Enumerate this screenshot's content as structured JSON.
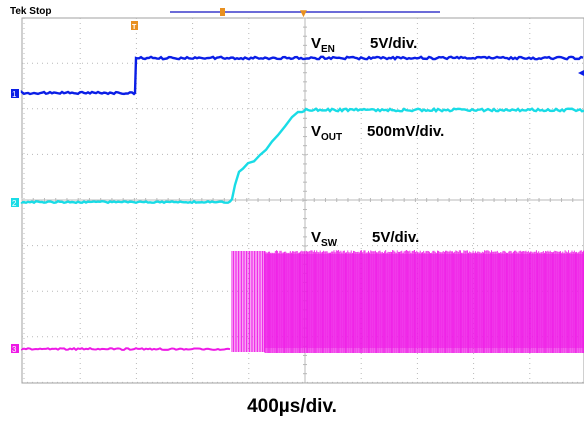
{
  "status": {
    "text": "Tek Stop"
  },
  "markers": {
    "trigger_position": "T",
    "trigger_arrow": "▼"
  },
  "channels": [
    {
      "id": "1",
      "main": "V",
      "sub": "EN",
      "scale": "5V/div.",
      "color": "#0a1ee6"
    },
    {
      "id": "2",
      "main": "V",
      "sub": "OUT",
      "scale": "500mV/div.",
      "color": "#19dce6"
    },
    {
      "id": "3",
      "main": "V",
      "sub": "SW",
      "scale": "5V/div.",
      "color": "#ee1ae6"
    }
  ],
  "timebase": {
    "label": "400µs/div."
  },
  "colors": {
    "grid": "#b8b8b8",
    "record_bar": "#3a3acc",
    "trigger_marker": "#e89020",
    "background": "#ffffff"
  }
}
